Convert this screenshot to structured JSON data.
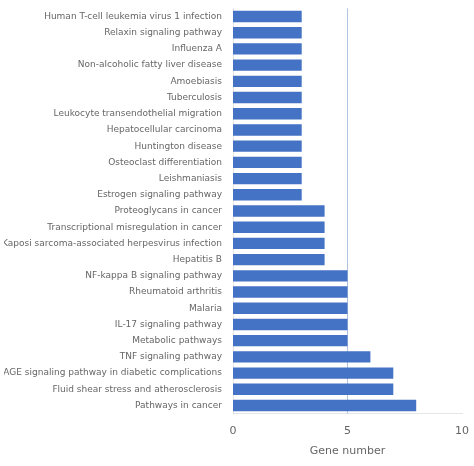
{
  "chart_data": {
    "type": "bar",
    "orientation": "horizontal",
    "categories": [
      "Human T-cell leukemia virus 1 infection",
      "Relaxin signaling pathway",
      "Influenza A",
      "Non-alcoholic fatty liver disease",
      "Amoebiasis",
      "Tuberculosis",
      "Leukocyte transendothelial migration",
      "Hepatocellular carcinoma",
      "Huntington disease",
      "Osteoclast differentiation",
      "Leishmaniasis",
      "Estrogen signaling pathway",
      "Proteoglycans in cancer",
      "Transcriptional misregulation in cancer",
      "Kaposi sarcoma-associated herpesvirus infection",
      "Hepatitis B",
      "NF-kappa B signaling pathway",
      "Rheumatoid arthritis",
      "Malaria",
      "IL-17 signaling pathway",
      "Metabolic pathways",
      "TNF signaling pathway",
      "AGE-RAGE signaling pathway in diabetic complications",
      "Fluid shear stress and atherosclerosis",
      "Pathways in cancer"
    ],
    "values": [
      3,
      3,
      3,
      3,
      3,
      3,
      3,
      3,
      3,
      3,
      3,
      3,
      4,
      4,
      4,
      4,
      5,
      5,
      5,
      5,
      5,
      6,
      7,
      7,
      8
    ],
    "color": "#4472C4",
    "xlabel": "Gene number",
    "xlim": [
      0,
      10
    ],
    "xticks": [
      0,
      5,
      10
    ],
    "reference_line": {
      "value": 5,
      "color": "#b0c4de"
    },
    "grid": false
  }
}
